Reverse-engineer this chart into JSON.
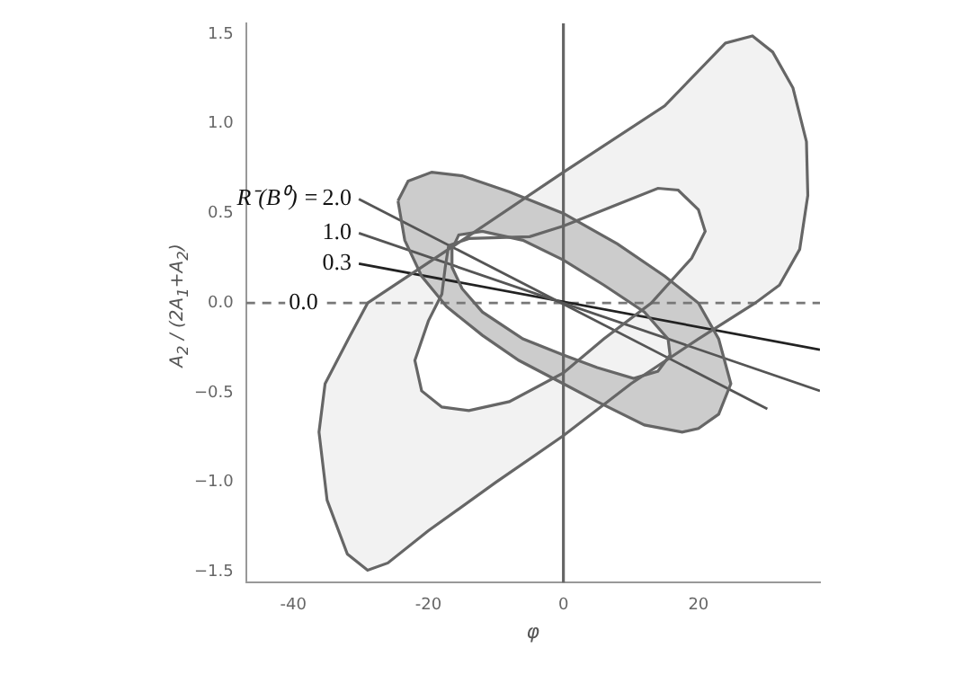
{
  "chart_data": {
    "type": "line",
    "xlabel": "φ",
    "ylabel": "A$_{2}$ / (2A$_{1}$+A$_{2}$)",
    "xlim": [
      -47,
      38
    ],
    "ylim": [
      -1.56,
      1.56
    ],
    "xticks": [
      -40,
      -20,
      0,
      20
    ],
    "yticks": [
      {
        "value": -1.5,
        "label": "−1.5"
      },
      {
        "value": -1,
        "label": "−1.0"
      },
      {
        "value": -0.5,
        "label": "−0.5"
      },
      {
        "value": 0,
        "label": "0.0"
      },
      {
        "value": 0.5,
        "label": "0.5"
      },
      {
        "value": 1,
        "label": "1.0"
      },
      {
        "value": 1.5,
        "label": "1.5"
      }
    ],
    "grid": false,
    "legend": false,
    "marker": "none",
    "ref_lines": [
      {
        "axis": "x",
        "value": 0,
        "color": "#666666"
      }
    ],
    "annotations": [
      "R⁻(B⁰) ="
    ],
    "series": [
      {
        "type": "area",
        "color": "#f2f2f2",
        "x": [
          -29,
          -15,
          0,
          15,
          24,
          28,
          31,
          34,
          36,
          36.2,
          35,
          32,
          28.4,
          20,
          10,
          0,
          -10,
          -20,
          -26,
          -29,
          -32,
          -35,
          -36.2,
          -35.3,
          -31.7,
          -29,
          null,
          -17,
          -14,
          -5,
          0,
          8,
          14,
          17,
          20,
          21,
          19,
          13,
          6,
          0,
          -8,
          -14,
          -18,
          -21,
          -22,
          -20,
          -18,
          -17.5,
          -17
        ],
        "values": [
          0,
          0.35,
          0.73,
          1.1,
          1.45,
          1.49,
          1.4,
          1.2,
          0.9,
          0.6,
          0.3,
          0.1,
          0,
          -0.2,
          -0.45,
          -0.74,
          -1,
          -1.27,
          -1.45,
          -1.49,
          -1.4,
          -1.1,
          -0.72,
          -0.45,
          -0.19,
          0,
          null,
          0.32,
          0.36,
          0.37,
          0.43,
          0.55,
          0.64,
          0.63,
          0.52,
          0.4,
          0.25,
          0,
          -0.2,
          -0.39,
          -0.55,
          -0.6,
          -0.58,
          -0.49,
          -0.32,
          -0.1,
          0.05,
          0.2,
          0.32
        ]
      },
      {
        "type": "area",
        "color": "#cccccc",
        "x": [
          -24.5,
          -23,
          -19.5,
          -15,
          -8,
          0,
          8,
          15,
          20,
          23,
          24.8,
          23,
          20,
          17.6,
          12,
          5,
          0,
          -6.6,
          -12,
          -17.3,
          -21,
          -23.5,
          -24.5,
          null,
          -16.5,
          -15.5,
          -12,
          -6,
          0,
          6,
          12,
          15.5,
          15.8,
          14,
          10.4,
          5,
          0,
          -6,
          -12,
          -15,
          -16.5,
          -16.5
        ],
        "values": [
          0.57,
          0.68,
          0.73,
          0.71,
          0.62,
          0.5,
          0.33,
          0.15,
          0,
          -0.2,
          -0.45,
          -0.62,
          -0.7,
          -0.72,
          -0.68,
          -0.55,
          -0.45,
          -0.32,
          -0.18,
          -0.02,
          0.15,
          0.35,
          0.57,
          null,
          0.3,
          0.38,
          0.4,
          0.35,
          0.24,
          0.1,
          -0.05,
          -0.2,
          -0.29,
          -0.38,
          -0.42,
          -0.36,
          -0.29,
          -0.2,
          -0.05,
          0.08,
          0.2,
          0.3
        ]
      },
      {
        "type": "line",
        "name": "2.0",
        "color": "#555555",
        "x": [
          -30.3,
          30.2
        ],
        "values": [
          0.58,
          -0.59
        ]
      },
      {
        "type": "line",
        "name": "1.0",
        "color": "#555555",
        "x": [
          -30.3,
          38
        ],
        "values": [
          0.39,
          -0.49
        ]
      },
      {
        "type": "line",
        "name": "0.3",
        "color": "#222222",
        "x": [
          -30.3,
          38
        ],
        "values": [
          0.22,
          -0.26
        ]
      },
      {
        "type": "line",
        "name": "0.0",
        "color": "#777777",
        "line_style": "dashed",
        "x": [
          -47,
          38
        ],
        "values": [
          0,
          0
        ]
      }
    ]
  }
}
